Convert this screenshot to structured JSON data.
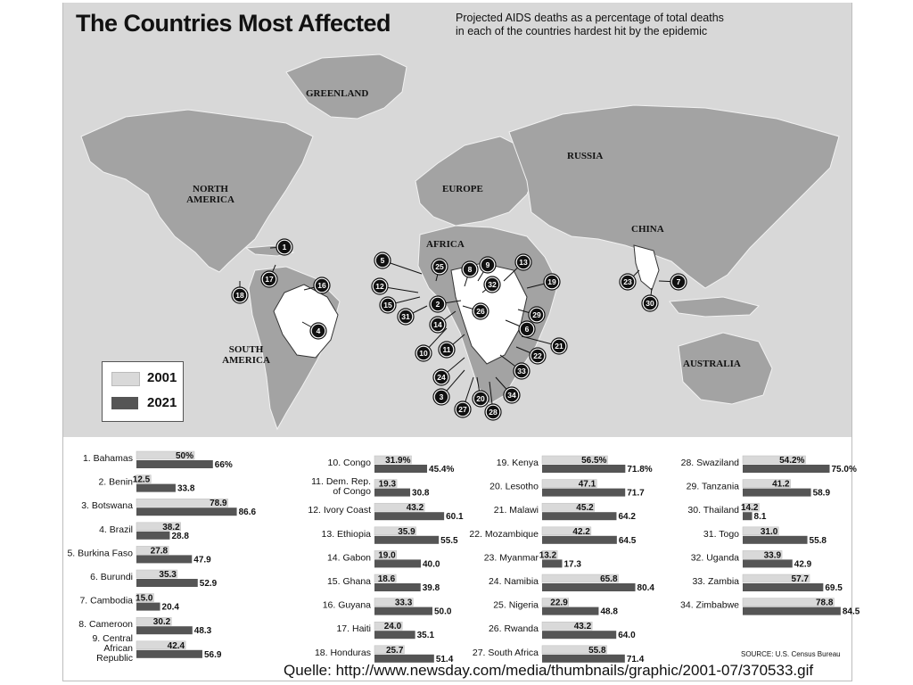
{
  "header": {
    "title": "The Countries Most Affected",
    "subtitle_line1": "Projected AIDS deaths as a percentage of total deaths",
    "subtitle_line2": "in each of the countries hardest hit by the epidemic"
  },
  "map": {
    "regions": {
      "greenland": "GREENLAND",
      "russia": "RUSSIA",
      "north_america_1": "NORTH",
      "north_america_2": "AMERICA",
      "europe": "EUROPE",
      "africa": "AFRICA",
      "china": "CHINA",
      "south_america_1": "SOUTH",
      "south_america_2": "AMERICA",
      "australia": "AUSTRALIA"
    },
    "markers": [
      "1",
      "2",
      "3",
      "4",
      "5",
      "6",
      "7",
      "8",
      "9",
      "10",
      "11",
      "12",
      "13",
      "14",
      "15",
      "16",
      "17",
      "18",
      "19",
      "20",
      "21",
      "22",
      "23",
      "24",
      "25",
      "26",
      "27",
      "28",
      "29",
      "30",
      "31",
      "32",
      "33",
      "34"
    ]
  },
  "legend": {
    "series_2001": "2001",
    "series_2021": "2021"
  },
  "colors": {
    "bar_2001": "#d9d9d9",
    "bar_2021": "#555555",
    "map_background": "#d8d8d8",
    "land": "#a3a3a3",
    "highlight": "#ffffff"
  },
  "chart_data": {
    "type": "bar",
    "orientation": "horizontal",
    "title": "The Countries Most Affected",
    "subtitle": "Projected AIDS deaths as a percentage of total deaths in each of the countries hardest hit by the epidemic",
    "series": [
      {
        "name": "2001"
      },
      {
        "name": "2021"
      }
    ],
    "xlim": [
      0,
      100
    ],
    "rows": [
      {
        "num": "1.",
        "label": [
          "Bahamas"
        ],
        "v2001": 50,
        "v2021": 66,
        "l2001": "50%",
        "l2021": "66%"
      },
      {
        "num": "2.",
        "label": [
          "Benin"
        ],
        "v2001": 12.5,
        "v2021": 33.8,
        "l2001": "12.5",
        "l2021": "33.8"
      },
      {
        "num": "3.",
        "label": [
          "Botswana"
        ],
        "v2001": 78.9,
        "v2021": 86.6,
        "l2001": "78.9",
        "l2021": "86.6"
      },
      {
        "num": "4.",
        "label": [
          "Brazil"
        ],
        "v2001": 38.2,
        "v2021": 28.8,
        "l2001": "38.2",
        "l2021": "28.8"
      },
      {
        "num": "5.",
        "label": [
          "Burkina Faso"
        ],
        "v2001": 27.8,
        "v2021": 47.9,
        "l2001": "27.8",
        "l2021": "47.9"
      },
      {
        "num": "6.",
        "label": [
          "Burundi"
        ],
        "v2001": 35.3,
        "v2021": 52.9,
        "l2001": "35.3",
        "l2021": "52.9"
      },
      {
        "num": "7.",
        "label": [
          "Cambodia"
        ],
        "v2001": 15.0,
        "v2021": 20.4,
        "l2001": "15.0",
        "l2021": "20.4"
      },
      {
        "num": "8.",
        "label": [
          "Cameroon"
        ],
        "v2001": 30.2,
        "v2021": 48.3,
        "l2001": "30.2",
        "l2021": "48.3"
      },
      {
        "num": "9.",
        "label": [
          "Central",
          "African",
          "Republic"
        ],
        "v2001": 42.4,
        "v2021": 56.9,
        "l2001": "42.4",
        "l2021": "56.9"
      },
      {
        "num": "10.",
        "label": [
          "Congo"
        ],
        "v2001": 31.9,
        "v2021": 45.4,
        "l2001": "31.9%",
        "l2021": "45.4%"
      },
      {
        "num": "11.",
        "label": [
          "Dem. Rep.",
          "of Congo"
        ],
        "v2001": 19.3,
        "v2021": 30.8,
        "l2001": "19.3",
        "l2021": "30.8"
      },
      {
        "num": "12.",
        "label": [
          "Ivory Coast"
        ],
        "v2001": 43.2,
        "v2021": 60.1,
        "l2001": "43.2",
        "l2021": "60.1"
      },
      {
        "num": "13.",
        "label": [
          "Ethiopia"
        ],
        "v2001": 35.9,
        "v2021": 55.5,
        "l2001": "35.9",
        "l2021": "55.5"
      },
      {
        "num": "14.",
        "label": [
          "Gabon"
        ],
        "v2001": 19.0,
        "v2021": 40.0,
        "l2001": "19.0",
        "l2021": "40.0"
      },
      {
        "num": "15.",
        "label": [
          "Ghana"
        ],
        "v2001": 18.6,
        "v2021": 39.8,
        "l2001": "18.6",
        "l2021": "39.8"
      },
      {
        "num": "16.",
        "label": [
          "Guyana"
        ],
        "v2001": 33.3,
        "v2021": 50.0,
        "l2001": "33.3",
        "l2021": "50.0"
      },
      {
        "num": "17.",
        "label": [
          "Haiti"
        ],
        "v2001": 24.0,
        "v2021": 35.1,
        "l2001": "24.0",
        "l2021": "35.1"
      },
      {
        "num": "18.",
        "label": [
          "Honduras"
        ],
        "v2001": 25.7,
        "v2021": 51.4,
        "l2001": "25.7",
        "l2021": "51.4"
      },
      {
        "num": "19.",
        "label": [
          "Kenya"
        ],
        "v2001": 56.5,
        "v2021": 71.8,
        "l2001": "56.5%",
        "l2021": "71.8%"
      },
      {
        "num": "20.",
        "label": [
          "Lesotho"
        ],
        "v2001": 47.1,
        "v2021": 71.7,
        "l2001": "47.1",
        "l2021": "71.7"
      },
      {
        "num": "21.",
        "label": [
          "Malawi"
        ],
        "v2001": 45.2,
        "v2021": 64.2,
        "l2001": "45.2",
        "l2021": "64.2"
      },
      {
        "num": "22.",
        "label": [
          "Mozambique"
        ],
        "v2001": 42.2,
        "v2021": 64.5,
        "l2001": "42.2",
        "l2021": "64.5"
      },
      {
        "num": "23.",
        "label": [
          "Myanmar"
        ],
        "v2001": 13.2,
        "v2021": 17.3,
        "l2001": "13.2",
        "l2021": "17.3"
      },
      {
        "num": "24.",
        "label": [
          "Namibia"
        ],
        "v2001": 65.8,
        "v2021": 80.4,
        "l2001": "65.8",
        "l2021": "80.4"
      },
      {
        "num": "25.",
        "label": [
          "Nigeria"
        ],
        "v2001": 22.9,
        "v2021": 48.8,
        "l2001": "22.9",
        "l2021": "48.8"
      },
      {
        "num": "26.",
        "label": [
          "Rwanda"
        ],
        "v2001": 43.2,
        "v2021": 64.0,
        "l2001": "43.2",
        "l2021": "64.0"
      },
      {
        "num": "27.",
        "label": [
          "South Africa"
        ],
        "v2001": 55.8,
        "v2021": 71.4,
        "l2001": "55.8",
        "l2021": "71.4"
      },
      {
        "num": "28.",
        "label": [
          "Swaziland"
        ],
        "v2001": 54.2,
        "v2021": 75.0,
        "l2001": "54.2%",
        "l2021": "75.0%"
      },
      {
        "num": "29.",
        "label": [
          "Tanzania"
        ],
        "v2001": 41.2,
        "v2021": 58.9,
        "l2001": "41.2",
        "l2021": "58.9"
      },
      {
        "num": "30.",
        "label": [
          "Thailand"
        ],
        "v2001": 14.2,
        "v2021": 8.1,
        "l2001": "14.2",
        "l2021": "8.1"
      },
      {
        "num": "31.",
        "label": [
          "Togo"
        ],
        "v2001": 31.0,
        "v2021": 55.8,
        "l2001": "31.0",
        "l2021": "55.8"
      },
      {
        "num": "32.",
        "label": [
          "Uganda"
        ],
        "v2001": 33.9,
        "v2021": 42.9,
        "l2001": "33.9",
        "l2021": "42.9"
      },
      {
        "num": "33.",
        "label": [
          "Zambia"
        ],
        "v2001": 57.7,
        "v2021": 69.5,
        "l2001": "57.7",
        "l2021": "69.5"
      },
      {
        "num": "34.",
        "label": [
          "Zimbabwe"
        ],
        "v2001": 78.8,
        "v2021": 84.5,
        "l2001": "78.8",
        "l2021": "84.5"
      }
    ]
  },
  "footer": {
    "source": "SOURCE: U.S. Census Bureau",
    "quelle": "Quelle: http://www.newsday.com/media/thumbnails/graphic/2001-07/370533.gif"
  }
}
